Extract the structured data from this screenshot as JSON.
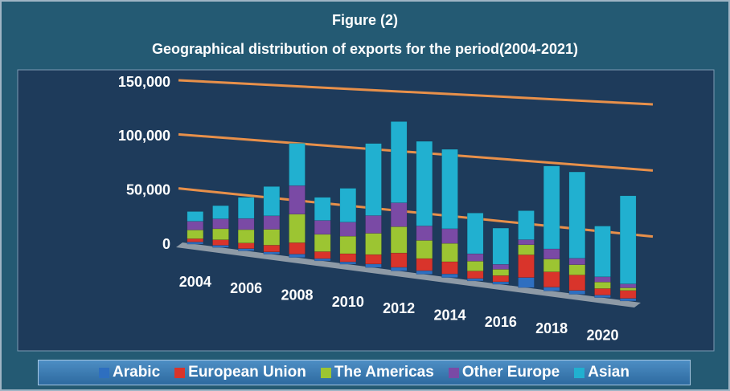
{
  "chart_data": {
    "type": "bar",
    "stacked": true,
    "title": "Figure (2)",
    "subtitle": "Geographical distribution of exports for the period(2004-2021)",
    "categories": [
      "2004",
      null,
      "2006",
      null,
      "2008",
      null,
      "2010",
      null,
      "2012",
      null,
      "2014",
      null,
      "2016",
      null,
      "2018",
      null,
      "2020",
      null
    ],
    "series": [
      {
        "name": "Arabic",
        "color": "#2e6fc0",
        "values": [
          2000,
          2000,
          2000,
          2000,
          3000,
          2000,
          2000,
          3000,
          3000,
          3000,
          3000,
          2000,
          2000,
          8000,
          3000,
          3000,
          2000,
          2000
        ]
      },
      {
        "name": "European Union",
        "color": "#d9342b",
        "values": [
          3000,
          5000,
          5000,
          6000,
          10000,
          6000,
          7000,
          8000,
          12000,
          10000,
          10000,
          6000,
          5000,
          18000,
          12000,
          12000,
          5000,
          6000
        ]
      },
      {
        "name": "The Americas",
        "color": "#9cc532",
        "values": [
          8000,
          10000,
          12000,
          14000,
          25000,
          15000,
          15000,
          18000,
          22000,
          15000,
          15000,
          8000,
          5000,
          8000,
          10000,
          8000,
          5000,
          2000
        ]
      },
      {
        "name": "Other Europe",
        "color": "#7a4aa5",
        "values": [
          8000,
          9000,
          10000,
          12000,
          25000,
          12000,
          12000,
          15000,
          20000,
          12000,
          12000,
          6000,
          4000,
          4000,
          8000,
          5000,
          4000,
          3000
        ]
      },
      {
        "name": "Asian",
        "color": "#21b0d0",
        "values": [
          9000,
          12000,
          19000,
          26000,
          37000,
          20000,
          29000,
          61000,
          68000,
          70000,
          65000,
          33000,
          29000,
          23000,
          65000,
          67000,
          39000,
          67000
        ]
      }
    ],
    "ylim": [
      0,
      150000
    ],
    "yticks": [
      0,
      {
        "value": 50000,
        "label": "50,000"
      },
      {
        "value": 100000,
        "label": "100,000"
      },
      {
        "value": 150000,
        "label": "150,000"
      }
    ],
    "grid": true,
    "grid_color": "#e8904a",
    "legend": "bottom"
  }
}
